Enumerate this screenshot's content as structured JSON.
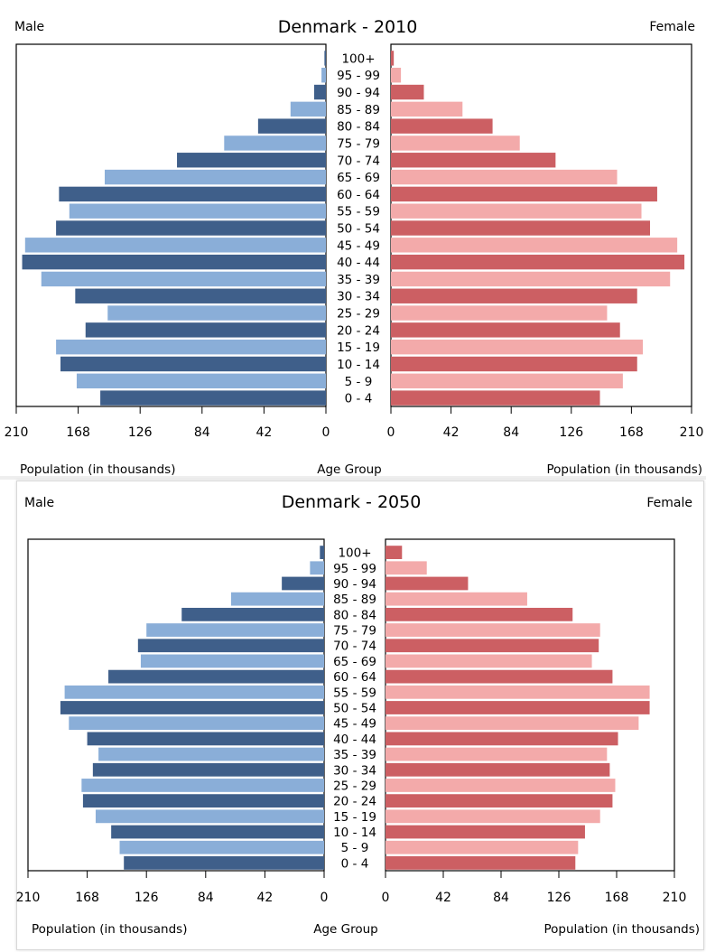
{
  "charts_meta": {
    "colors": {
      "male_dark": "#3f5f8a",
      "male_light": "#8aaed8",
      "female_dark": "#cc5f63",
      "female_light": "#f3aaaa"
    }
  },
  "chart_data": [
    {
      "type": "bar",
      "title": "Denmark - 2010",
      "left_label": "Male",
      "right_label": "Female",
      "xlabel_left": "Population (in thousands)",
      "xlabel_center": "Age Group",
      "xlabel_right": "Population (in thousands)",
      "xlim": [
        0,
        210
      ],
      "xticks_left": [
        "210",
        "168",
        "126",
        "84",
        "42",
        "0"
      ],
      "xticks_right": [
        "0",
        "42",
        "84",
        "126",
        "168",
        "210"
      ],
      "categories": [
        "100+",
        "95 - 99",
        "90 - 94",
        "85 - 89",
        "80 - 84",
        "75 - 79",
        "70 - 74",
        "65 - 69",
        "60 - 64",
        "55 - 59",
        "50 - 54",
        "45 - 49",
        "40 - 44",
        "35 - 39",
        "30 - 34",
        "25 - 29",
        "20 - 24",
        "15 - 19",
        "10 - 14",
        "5 - 9",
        "0 - 4"
      ],
      "series": [
        {
          "name": "Male",
          "values": [
            1,
            3,
            8,
            24,
            46,
            69,
            101,
            150,
            181,
            174,
            183,
            204,
            206,
            193,
            170,
            148,
            163,
            183,
            180,
            169,
            153
          ]
        },
        {
          "name": "Female",
          "values": [
            2,
            7,
            23,
            50,
            71,
            90,
            115,
            158,
            186,
            175,
            181,
            200,
            205,
            195,
            172,
            151,
            160,
            176,
            172,
            162,
            146
          ]
        }
      ]
    },
    {
      "type": "bar",
      "title": "Denmark - 2050",
      "left_label": "Male",
      "right_label": "Female",
      "xlabel_left": "Population (in thousands)",
      "xlabel_center": "Age Group",
      "xlabel_right": "Population (in thousands)",
      "xlim": [
        0,
        210
      ],
      "xticks_left": [
        "210",
        "168",
        "126",
        "84",
        "42",
        "0"
      ],
      "xticks_right": [
        "0",
        "42",
        "84",
        "126",
        "168",
        "210"
      ],
      "categories": [
        "100+",
        "95 - 99",
        "90 - 94",
        "85 - 89",
        "80 - 84",
        "75 - 79",
        "70 - 74",
        "65 - 69",
        "60 - 64",
        "55 - 59",
        "50 - 54",
        "45 - 49",
        "40 - 44",
        "35 - 39",
        "30 - 34",
        "25 - 29",
        "20 - 24",
        "15 - 19",
        "10 - 14",
        "5 - 9",
        "0 - 4"
      ],
      "series": [
        {
          "name": "Male",
          "values": [
            3,
            10,
            30,
            66,
            101,
            126,
            132,
            130,
            153,
            184,
            187,
            181,
            168,
            160,
            164,
            172,
            171,
            162,
            151,
            145,
            142
          ]
        },
        {
          "name": "Female",
          "values": [
            12,
            30,
            60,
            103,
            136,
            156,
            155,
            150,
            165,
            192,
            192,
            184,
            169,
            161,
            163,
            167,
            165,
            156,
            145,
            140,
            138
          ]
        }
      ]
    }
  ]
}
